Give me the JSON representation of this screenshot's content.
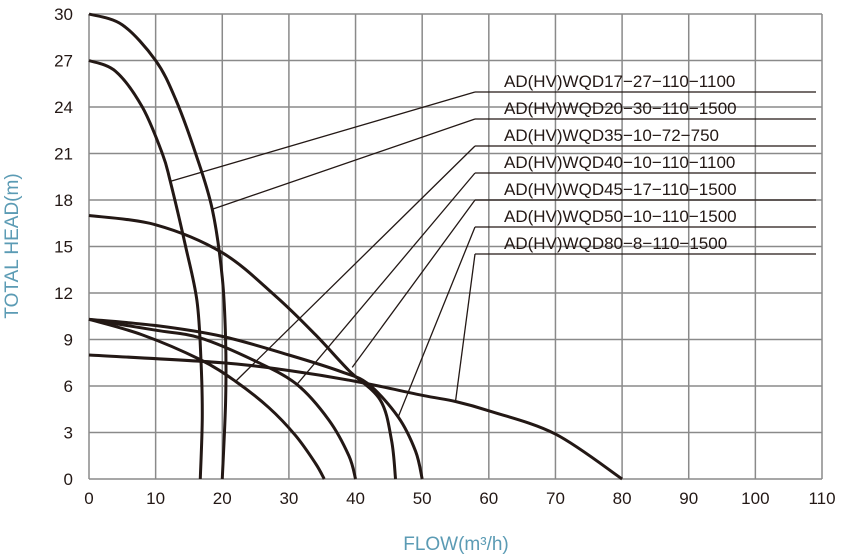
{
  "chart_data": {
    "type": "line",
    "title": "",
    "xlabel": "FLOW(m³/h)",
    "ylabel": "TOTAL HEAD(m)",
    "xlim": [
      0,
      110
    ],
    "ylim": [
      0,
      30
    ],
    "xticks": [
      0,
      10,
      20,
      30,
      40,
      50,
      60,
      70,
      80,
      90,
      100,
      110
    ],
    "yticks": [
      0,
      3,
      6,
      9,
      12,
      15,
      18,
      21,
      24,
      27,
      30
    ],
    "grid": true,
    "colors": {
      "grid": "#8a8a8a",
      "curve": "#231815",
      "axis_label": "#5b9bb4"
    },
    "series": [
      {
        "name": "AD(HV)WQD17−27−110−1100",
        "points": [
          [
            0,
            27
          ],
          [
            4,
            26.3
          ],
          [
            8,
            24
          ],
          [
            11,
            21
          ],
          [
            12.2,
            19.2
          ],
          [
            14.5,
            15
          ],
          [
            16.2,
            11.5
          ],
          [
            16.8,
            7.7
          ],
          [
            17,
            4
          ],
          [
            16.7,
            0
          ]
        ],
        "leader_at": [
          12.2,
          19.2
        ]
      },
      {
        "name": "AD(HV)WQD20−30−110−1500",
        "points": [
          [
            0,
            30
          ],
          [
            5,
            29.3
          ],
          [
            10,
            27
          ],
          [
            13,
            24.5
          ],
          [
            16,
            21
          ],
          [
            18.5,
            17.4
          ],
          [
            20,
            13
          ],
          [
            20.5,
            9
          ],
          [
            20.5,
            5
          ],
          [
            20,
            0
          ]
        ],
        "leader_at": [
          18.5,
          17.4
        ]
      },
      {
        "name": "AD(HV)WQD35−10−72−750",
        "points": [
          [
            0,
            10.3
          ],
          [
            8,
            9.3
          ],
          [
            16.7,
            7.7
          ],
          [
            22,
            6.3
          ],
          [
            27,
            4.6
          ],
          [
            31,
            2.8
          ],
          [
            34,
            1
          ],
          [
            35.3,
            0
          ]
        ],
        "leader_at": [
          22,
          6.3
        ]
      },
      {
        "name": "AD(HV)WQD40−10−110−1100",
        "points": [
          [
            0,
            10.3
          ],
          [
            10,
            9.6
          ],
          [
            16.7,
            9.1
          ],
          [
            25,
            7.6
          ],
          [
            31.2,
            6.1
          ],
          [
            36,
            3.8
          ],
          [
            39,
            1.5
          ],
          [
            40,
            0
          ]
        ],
        "leader_at": [
          31.2,
          6.1
        ]
      },
      {
        "name": "AD(HV)WQD45−17−110−1500",
        "points": [
          [
            0,
            17
          ],
          [
            10,
            16.4
          ],
          [
            20,
            14.6
          ],
          [
            28,
            11.8
          ],
          [
            34,
            9.3
          ],
          [
            39,
            7.0
          ],
          [
            43.7,
            5.1
          ],
          [
            45.4,
            2.5
          ],
          [
            46,
            0
          ]
        ],
        "leader_at": [
          39.5,
          7.2
        ]
      },
      {
        "name": "AD(HV)WQD50−10−110−1500",
        "points": [
          [
            0,
            10.3
          ],
          [
            10,
            9.9
          ],
          [
            20,
            9.2
          ],
          [
            30,
            8
          ],
          [
            38,
            6.9
          ],
          [
            42,
            6.1
          ],
          [
            46.4,
            4.0
          ],
          [
            49,
            1.8
          ],
          [
            50,
            0
          ]
        ],
        "leader_at": [
          46.4,
          4.0
        ]
      },
      {
        "name": "AD(HV)WQD80−8−110−1500",
        "points": [
          [
            0,
            8
          ],
          [
            20,
            7.5
          ],
          [
            30,
            7.0
          ],
          [
            40,
            6.3
          ],
          [
            50,
            5.4
          ],
          [
            55,
            5.0
          ],
          [
            60,
            4.4
          ],
          [
            70,
            2.9
          ],
          [
            80,
            0
          ]
        ],
        "leader_at": [
          55,
          5.0
        ]
      }
    ]
  }
}
